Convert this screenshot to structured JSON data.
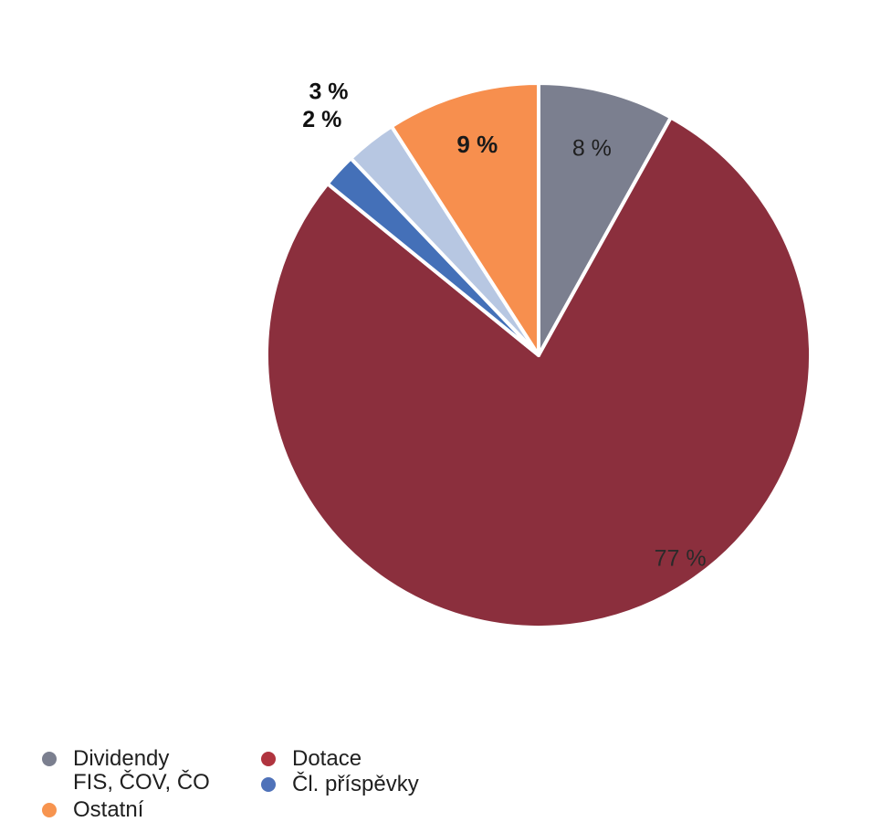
{
  "chart_data": {
    "type": "pie",
    "title": "",
    "start_angle_deg": 0,
    "direction": "clockwise",
    "slices": [
      {
        "name": "Dividendy\nFIS, ČOV, ČO",
        "value": 8,
        "label": "8 %",
        "color": "#7b7f8f"
      },
      {
        "name": "Dotace",
        "value": 77,
        "label": "77 %",
        "color": "#8b2f3d"
      },
      {
        "name": "Čl. příspěvky",
        "value": 2,
        "label": "2 %",
        "color": "#4470b8"
      },
      {
        "name": "",
        "value": 3,
        "label": "3 %",
        "color": "#b7c7e2"
      },
      {
        "name": "Ostatní",
        "value": 9,
        "label": "9 %",
        "color": "#f78f4e"
      }
    ],
    "legend_placement": "bottom-left"
  },
  "legend": [
    {
      "label": "Dividendy\nFIS, ČOV, ČO",
      "color": "#7b7f8f"
    },
    {
      "label": "Dotace",
      "color": "#b0343f"
    },
    {
      "label": "Čl. příspěvky",
      "color": "#4f72b9"
    },
    {
      "label": "Ostatní",
      "color": "#f7944f"
    }
  ]
}
